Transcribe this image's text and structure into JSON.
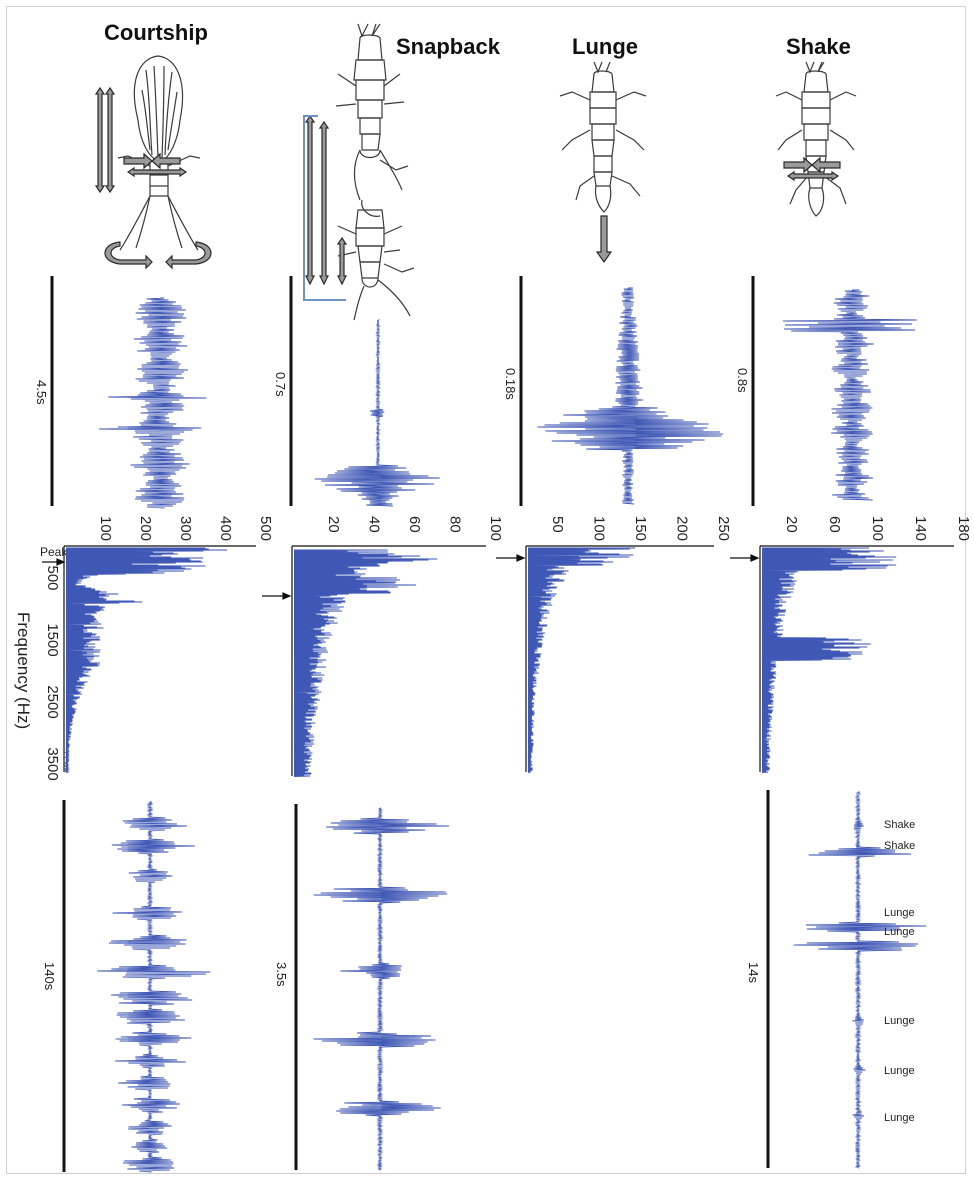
{
  "columns": [
    {
      "id": "courtship",
      "title": "Courtship"
    },
    {
      "id": "snapback",
      "title": "Snapback"
    },
    {
      "id": "lunge",
      "title": "Lunge"
    },
    {
      "id": "shake",
      "title": "Shake"
    }
  ],
  "waveform_durations": [
    "4.5s",
    "0.7s",
    "0.18s",
    "0.8s"
  ],
  "train_durations": [
    "140s",
    "3.5s",
    "14s"
  ],
  "spectra": {
    "peak_label": "Peak",
    "frequency_axis_label": "Frequency (Hz)",
    "frequency_ticks": [
      "500",
      "1500",
      "2500",
      "3500"
    ],
    "amplitude_ticks": [
      [
        "100",
        "200",
        "300",
        "400",
        "500"
      ],
      [
        "20",
        "40",
        "60",
        "80",
        "100"
      ],
      [
        "50",
        "100",
        "150",
        "200",
        "250"
      ],
      [
        "20",
        "60",
        "100",
        "140",
        "180"
      ]
    ]
  },
  "shake_train_labels": [
    "Shake",
    "Shake",
    "Lunge",
    "Lunge",
    "Lunge",
    "Lunge",
    "Lunge"
  ],
  "colors": {
    "signal": "#3f57b5",
    "axis": "#111111",
    "insect_outline": "#3a3a3a",
    "arrow_fill": "#9a9a9a",
    "bracket": "#6d93c9"
  }
}
